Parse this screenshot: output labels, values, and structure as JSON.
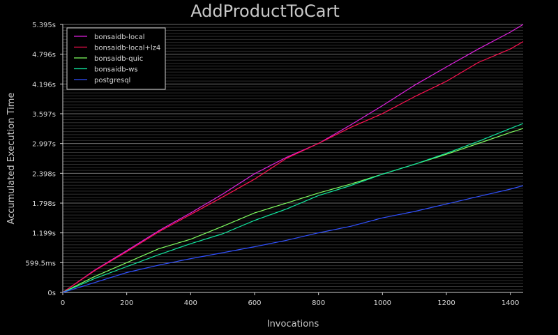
{
  "chart_data": {
    "type": "line",
    "title": "AddProductToCart",
    "xlabel": "Invocations",
    "ylabel": "Accumulated Execution Time",
    "xlim": [
      0,
      1440
    ],
    "ylim": [
      0,
      5.395
    ],
    "x_ticks": [
      0,
      200,
      400,
      600,
      800,
      1000,
      1200,
      1400
    ],
    "y_ticks": [
      {
        "value": 0,
        "label": "0s"
      },
      {
        "value": 0.5995,
        "label": "599.5ms"
      },
      {
        "value": 1.199,
        "label": "1.199s"
      },
      {
        "value": 1.798,
        "label": "1.798s"
      },
      {
        "value": 2.398,
        "label": "2.398s"
      },
      {
        "value": 2.997,
        "label": "2.997s"
      },
      {
        "value": 3.597,
        "label": "3.597s"
      },
      {
        "value": 4.196,
        "label": "4.196s"
      },
      {
        "value": 4.796,
        "label": "4.796s"
      },
      {
        "value": 5.395,
        "label": "5.395s"
      }
    ],
    "grid": true,
    "legend_position": "top-left",
    "series": [
      {
        "name": "bonsaidb-local",
        "color": "#e020e0",
        "x": [
          0,
          100,
          200,
          300,
          400,
          500,
          600,
          700,
          800,
          900,
          1000,
          1100,
          1200,
          1300,
          1400,
          1440
        ],
        "y": [
          0,
          0.45,
          0.84,
          1.24,
          1.6,
          1.98,
          2.39,
          2.72,
          3.0,
          3.37,
          3.76,
          4.17,
          4.54,
          4.9,
          5.24,
          5.395
        ]
      },
      {
        "name": "bonsaidb-local+lz4",
        "color": "#ff1050",
        "x": [
          0,
          100,
          200,
          300,
          400,
          500,
          600,
          700,
          800,
          900,
          1000,
          1100,
          1200,
          1300,
          1400,
          1440
        ],
        "y": [
          0,
          0.44,
          0.82,
          1.22,
          1.57,
          1.92,
          2.28,
          2.7,
          3.0,
          3.32,
          3.6,
          3.94,
          4.25,
          4.63,
          4.9,
          5.05
        ]
      },
      {
        "name": "bonsaidb-quic",
        "color": "#80ff60",
        "x": [
          0,
          100,
          200,
          300,
          400,
          500,
          600,
          700,
          800,
          900,
          1000,
          1100,
          1200,
          1300,
          1400,
          1440
        ],
        "y": [
          0,
          0.32,
          0.6,
          0.88,
          1.07,
          1.33,
          1.6,
          1.8,
          2.0,
          2.18,
          2.38,
          2.58,
          2.78,
          3.0,
          3.22,
          3.3
        ]
      },
      {
        "name": "bonsaidb-ws",
        "color": "#10e8a0",
        "x": [
          0,
          100,
          200,
          300,
          400,
          500,
          600,
          700,
          800,
          900,
          1000,
          1100,
          1200,
          1300,
          1400,
          1440
        ],
        "y": [
          0,
          0.28,
          0.52,
          0.76,
          0.98,
          1.18,
          1.45,
          1.68,
          1.95,
          2.15,
          2.38,
          2.58,
          2.8,
          3.04,
          3.3,
          3.4
        ]
      },
      {
        "name": "postgresql",
        "color": "#3050ff",
        "x": [
          0,
          100,
          200,
          300,
          400,
          500,
          600,
          700,
          800,
          900,
          1000,
          1100,
          1200,
          1300,
          1400,
          1440
        ],
        "y": [
          0,
          0.2,
          0.4,
          0.55,
          0.68,
          0.8,
          0.92,
          1.05,
          1.2,
          1.33,
          1.5,
          1.63,
          1.78,
          1.93,
          2.08,
          2.15
        ]
      }
    ]
  }
}
